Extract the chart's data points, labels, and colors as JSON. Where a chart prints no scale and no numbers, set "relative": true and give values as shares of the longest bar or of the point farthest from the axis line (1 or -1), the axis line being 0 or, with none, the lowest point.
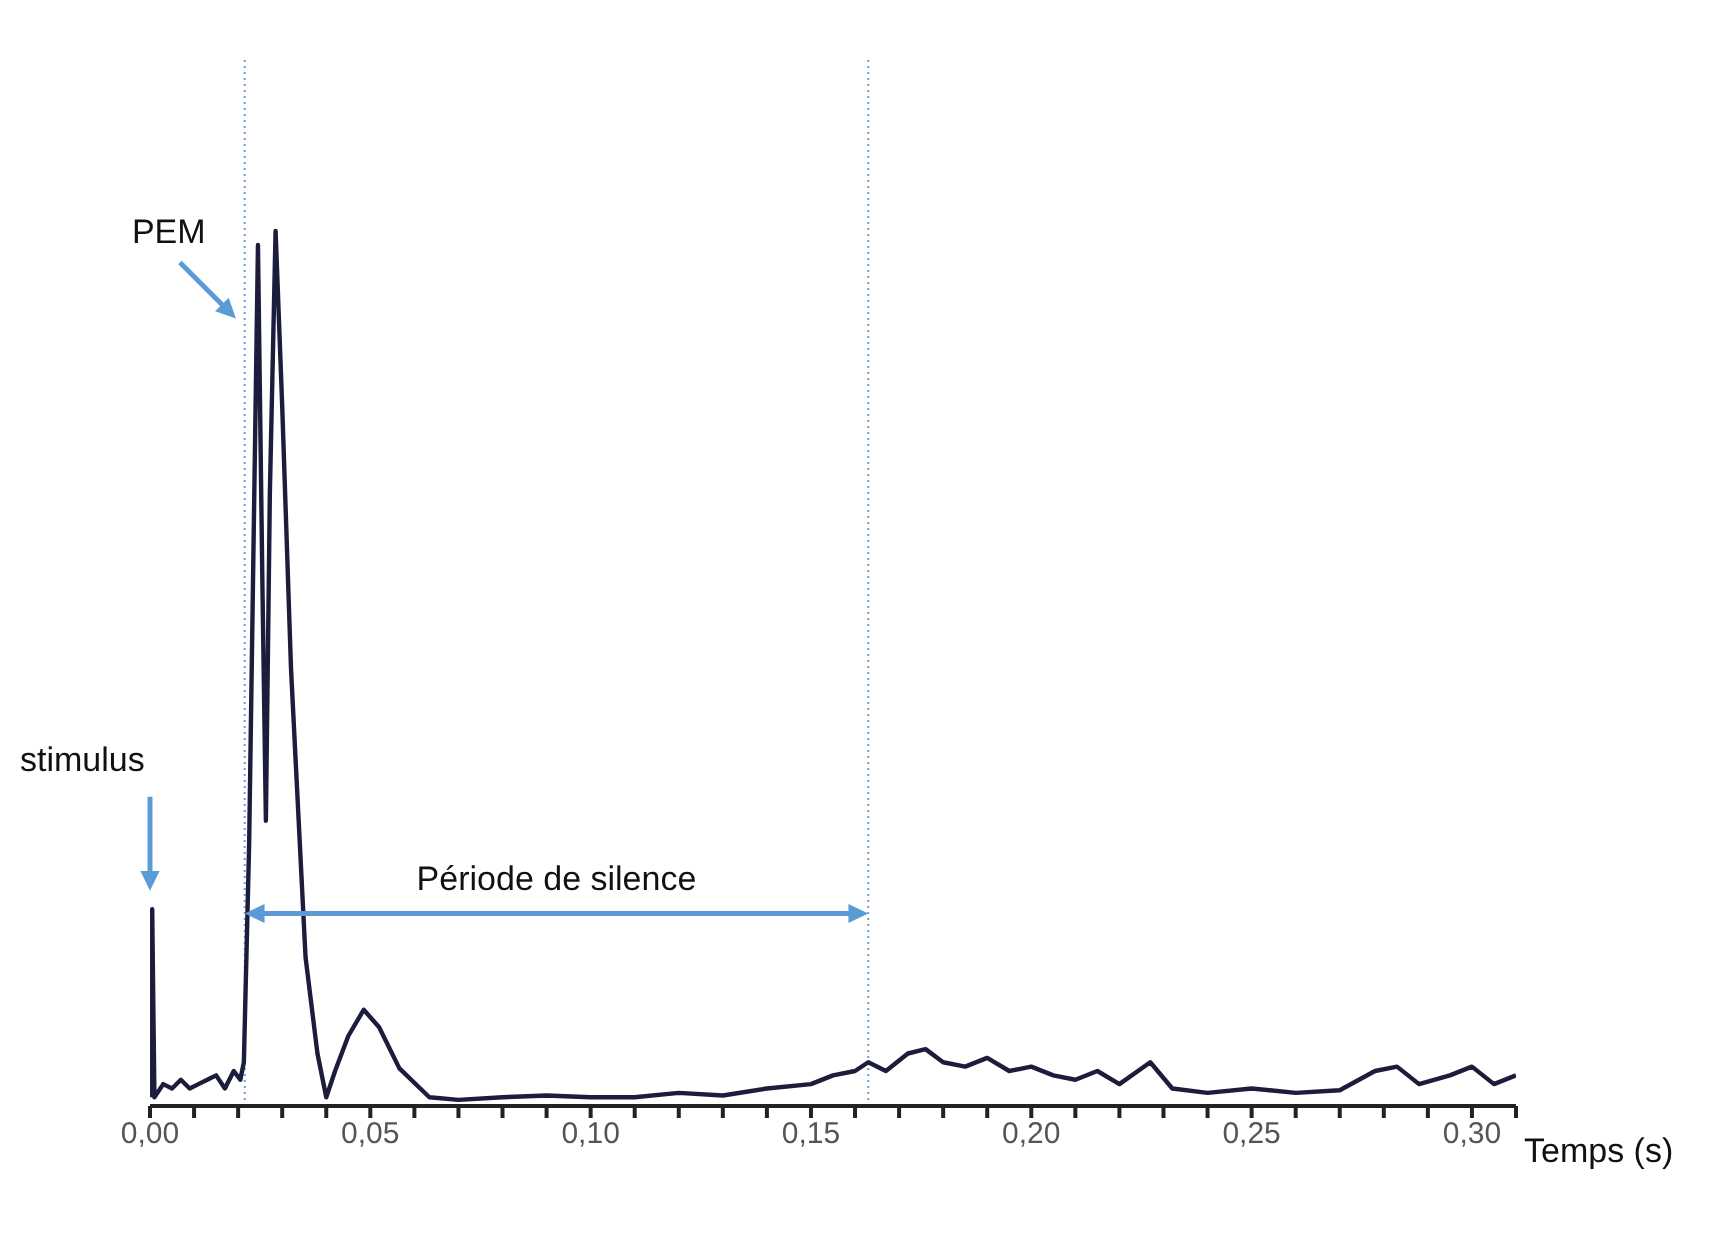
{
  "chart_data": {
    "type": "line",
    "relative": true,
    "xlabel": "Temps (s)",
    "marker": "none",
    "x": [
      0,
      0.0005,
      0.001,
      0.003,
      0.005,
      0.007,
      0.009,
      0.011,
      0.013,
      0.015,
      0.017,
      0.019,
      0.0205,
      0.0213,
      0.0225,
      0.0245,
      0.0255,
      0.0263,
      0.0272,
      0.0285,
      0.03,
      0.032,
      0.034,
      0.0353,
      0.038,
      0.04,
      0.042,
      0.045,
      0.0485,
      0.052,
      0.0566,
      0.0634,
      0.07,
      0.08,
      0.09,
      0.1,
      0.11,
      0.12,
      0.13,
      0.14,
      0.15,
      0.155,
      0.16,
      0.163,
      0.167,
      0.172,
      0.176,
      0.18,
      0.185,
      0.19,
      0.195,
      0.2,
      0.205,
      0.21,
      0.215,
      0.22,
      0.227,
      0.232,
      0.24,
      0.25,
      0.26,
      0.27,
      0.278,
      0.283,
      0.288,
      0.295,
      0.3,
      0.305,
      0.31
    ],
    "series": [
      {
        "color": "#1c1c3c",
        "values": [
          0.01,
          0.225,
          0.01,
          0.025,
          0.02,
          0.03,
          0.02,
          0.025,
          0.03,
          0.035,
          0.02,
          0.04,
          0.03,
          0.05,
          0.3,
          0.984,
          0.6,
          0.326,
          0.7,
          1.0,
          0.8,
          0.5,
          0.3,
          0.17,
          0.06,
          0.01,
          0.04,
          0.08,
          0.11,
          0.09,
          0.043,
          0.01,
          0.007,
          0.01,
          0.012,
          0.01,
          0.01,
          0.015,
          0.012,
          0.02,
          0.025,
          0.035,
          0.04,
          0.05,
          0.04,
          0.06,
          0.065,
          0.05,
          0.045,
          0.055,
          0.04,
          0.045,
          0.035,
          0.03,
          0.04,
          0.025,
          0.05,
          0.02,
          0.015,
          0.02,
          0.015,
          0.018,
          0.04,
          0.045,
          0.025,
          0.035,
          0.045,
          0.025,
          0.035
        ]
      }
    ],
    "xlim": [
      0,
      0.31
    ],
    "xticks": [
      {
        "value": 0,
        "label": "0,00"
      },
      {
        "value": 0.01,
        "label": null
      },
      {
        "value": 0.02,
        "label": null
      },
      {
        "value": 0.03,
        "label": null
      },
      {
        "value": 0.04,
        "label": null
      },
      {
        "value": 0.05,
        "label": "0,05"
      },
      {
        "value": 0.06,
        "label": null
      },
      {
        "value": 0.07,
        "label": null
      },
      {
        "value": 0.08,
        "label": null
      },
      {
        "value": 0.09,
        "label": null
      },
      {
        "value": 0.1,
        "label": "0,10"
      },
      {
        "value": 0.11,
        "label": null
      },
      {
        "value": 0.12,
        "label": null
      },
      {
        "value": 0.13,
        "label": null
      },
      {
        "value": 0.14,
        "label": null
      },
      {
        "value": 0.15,
        "label": "0,15"
      },
      {
        "value": 0.16,
        "label": null
      },
      {
        "value": 0.17,
        "label": null
      },
      {
        "value": 0.18,
        "label": null
      },
      {
        "value": 0.19,
        "label": null
      },
      {
        "value": 0.2,
        "label": "0,20"
      },
      {
        "value": 0.21,
        "label": null
      },
      {
        "value": 0.22,
        "label": null
      },
      {
        "value": 0.23,
        "label": null
      },
      {
        "value": 0.24,
        "label": null
      },
      {
        "value": 0.25,
        "label": "0,25"
      },
      {
        "value": 0.26,
        "label": null
      },
      {
        "value": 0.27,
        "label": null
      },
      {
        "value": 0.28,
        "label": null
      },
      {
        "value": 0.29,
        "label": null
      },
      {
        "value": 0.3,
        "label": "0,30"
      },
      {
        "value": 0.31,
        "label": null
      }
    ],
    "ref_lines": [
      {
        "axis": "x",
        "value": 0.0215,
        "color": "#6a9fd0",
        "line_style": "dotted"
      },
      {
        "axis": "x",
        "value": 0.163,
        "color": "#6a9fd0",
        "line_style": "dotted"
      }
    ],
    "annotations": [
      {
        "text": "PEM",
        "x": 0.0195,
        "y": 0.9
      },
      "stimulus",
      "Période de silence"
    ]
  }
}
